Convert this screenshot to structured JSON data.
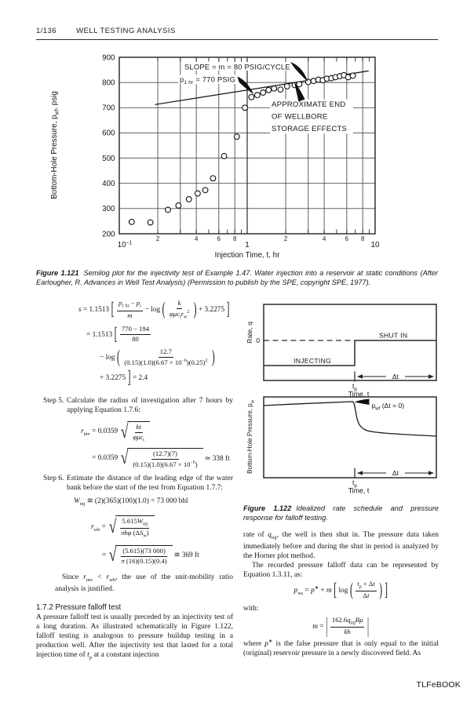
{
  "header": {
    "page": "1/136",
    "title": "WELL TESTING ANALYSIS"
  },
  "figure121": {
    "label": "Figure 1.121",
    "text": "Semilog plot for the injectivity test of Example 1.47. Water injection into a reservoir at static conditions (After Earlougher, R. Advances in Well Test Analysis) (Permission to publish by the SPE, copyright SPE, 1977)."
  },
  "chart_data": {
    "type": "scatter",
    "x_scale": "log",
    "xlim": [
      0.1,
      10
    ],
    "ylim": [
      200,
      900
    ],
    "xlabel": "Injection Time, t, hr",
    "ylabel": "Bottom-Hole Pressure, p_{wf}, psig",
    "y_ticks": [
      200,
      300,
      400,
      500,
      600,
      700,
      800,
      900
    ],
    "x_gridlines": [
      0.2,
      0.3,
      0.4,
      0.6,
      0.8,
      1,
      2,
      3,
      4,
      6,
      8
    ],
    "x_minor_ticks": [
      0.2,
      0.3,
      0.4,
      0.5,
      0.6,
      0.7,
      0.8,
      0.9,
      2,
      3,
      4,
      5,
      6,
      7,
      8,
      9
    ],
    "x_tick_labels": [
      {
        "t": 0.1,
        "label": "10^{−1}",
        "size": "major"
      },
      {
        "t": 0.2,
        "label": "2",
        "size": "minor"
      },
      {
        "t": 0.4,
        "label": "4",
        "size": "minor"
      },
      {
        "t": 0.6,
        "label": "6",
        "size": "minor"
      },
      {
        "t": 0.8,
        "label": "8",
        "size": "minor"
      },
      {
        "t": 1,
        "label": "1",
        "size": "major"
      },
      {
        "t": 2,
        "label": "2",
        "size": "minor"
      },
      {
        "t": 4,
        "label": "4",
        "size": "minor"
      },
      {
        "t": 6,
        "label": "6",
        "size": "minor"
      },
      {
        "t": 8,
        "label": "8",
        "size": "minor"
      },
      {
        "t": 10,
        "label": "10",
        "size": "major"
      }
    ],
    "points": [
      [
        0.125,
        247
      ],
      [
        0.175,
        245
      ],
      [
        0.24,
        295
      ],
      [
        0.29,
        312
      ],
      [
        0.35,
        337
      ],
      [
        0.41,
        360
      ],
      [
        0.47,
        373
      ],
      [
        0.54,
        420
      ],
      [
        0.66,
        508
      ],
      [
        0.83,
        585
      ],
      [
        0.96,
        700
      ],
      [
        1.08,
        742
      ],
      [
        1.2,
        750
      ],
      [
        1.33,
        760
      ],
      [
        1.47,
        770
      ],
      [
        1.62,
        776
      ],
      [
        1.82,
        772
      ],
      [
        2.05,
        785
      ],
      [
        2.35,
        790
      ],
      [
        2.55,
        793
      ],
      [
        3.0,
        802
      ],
      [
        3.3,
        806
      ],
      [
        3.6,
        811
      ],
      [
        3.9,
        809
      ],
      [
        4.2,
        815
      ],
      [
        4.55,
        817
      ],
      [
        4.9,
        821
      ],
      [
        5.3,
        825
      ],
      [
        5.7,
        829
      ],
      [
        6.15,
        821
      ],
      [
        6.7,
        827
      ]
    ],
    "trend_line": {
      "p_1hr_psig": 770,
      "slope_psig_per_cycle": 80,
      "t_start": 0.19,
      "t_end": 8.9
    },
    "annotations": {
      "slope": "SLOPE = m = 80 PSIG/CYCLE",
      "p1hr": "p_{1 hr} = 770 PSIG",
      "storage_lines": [
        "APPROXIMATE END",
        "OF WELLBORE",
        "STORAGE EFFECTS"
      ]
    }
  },
  "equations": {
    "s1": [
      "«s» = 1.1513",
      {
        "b": "["
      },
      {
        "frac": [
          "«p»_{1 hr} − «p»_{i}",
          "«m»"
        ]
      },
      "− log",
      {
        "b": "("
      },
      {
        "frac": [
          "«k»",
          "«φμc»_{t}«r»_{w}^{2}"
        ]
      },
      {
        "b": ")"
      },
      "+ 3.2275",
      {
        "b": "]"
      }
    ],
    "s2": [
      "= 1.1513",
      {
        "b": "["
      },
      {
        "frac": [
          "770 − 194",
          "80"
        ]
      }
    ],
    "s3": [
      "− log",
      {
        "b": "("
      },
      {
        "frac": [
          "12.7",
          "(0.15)(1.0)(6.67 × 10^{−6})(0.25)^{2}"
        ]
      },
      {
        "b": ")"
      }
    ],
    "s4": [
      "+ 3.2275",
      {
        "b": "]"
      },
      "= 2.4"
    ],
    "rinv1": [
      "«r»_{inv} = 0.0359",
      {
        "sqrt": [
          {
            "frac": [
              "«kt»",
              "«φμc»_{t}"
            ]
          }
        ]
      }
    ],
    "rinv2": [
      "= 0.0359",
      {
        "sqrt": [
          {
            "frac": [
              "(12.7)(7)",
              "(0.15)(1.0)(6.67 × 10^{−6})"
            ]
          }
        ]
      },
      "≃ 338 ft"
    ],
    "winj": [
      "«W»_{inj} ≅ (2)(365)(100)(1.0) = 73 000 bbl"
    ],
    "rwb1": [
      "«r»_{wb} =",
      {
        "sqrt": [
          {
            "frac": [
              "5.615«W»_{inj}",
              "«πhφ» (Δ«S»_{w})"
            ]
          }
        ]
      }
    ],
    "rwb2": [
      "=",
      {
        "sqrt": [
          {
            "frac": [
              "(5.615)(73 000)",
              "«π» (16)(0.15)(0.4)"
            ]
          }
        ]
      },
      "≅ 369 ft"
    ],
    "pws": [
      "«p»_{ws} = «p»^{∗} + «m»",
      {
        "b": "["
      },
      "log",
      {
        "b": "("
      },
      {
        "frac": [
          "«t»_{p} + Δ«t»",
          "Δ«t»"
        ]
      },
      {
        "b": ")"
      },
      {
        "b": "]"
      }
    ],
    "m": [
      "«m» =",
      {
        "b": "|",
        "bar": true
      },
      {
        "frac": [
          "162.6«q»_{inj}«Bμ»",
          "«kh»"
        ]
      },
      {
        "b": "|",
        "bar": true
      }
    ]
  },
  "left_col": {
    "step5_label": "Step 5.",
    "step5_text": "Calculate the radius of investigation after 7 hours by applying Equation 1.7.6:",
    "step6_label": "Step 6.",
    "step6_text": "Estimate the distance of the leading edge of the water bank before the start of the test from Equation 1.7.7:",
    "since_text": "Since «r»_{inv} < «r»_{wb}, the use of the unit-mobility ratio analysis is justified.",
    "section_heading": "1.7.2  Pressure falloff test",
    "section_para": "A pressure falloff test is usually preceded by an injectivity test of a long duration. As illustrated schematically in Figure 1.122, falloff testing is analogous to pressure buildup testing in a production well. After the injectivity test that lasted for a total injection time of «t»_{p} at a constant injection"
  },
  "figure122": {
    "caption_label": "Figure 1.122",
    "caption_text": "Idealized rate schedule and pressure response for falloff testing.",
    "rate_plot": {
      "ylabel": "Rate, q",
      "zero": "0",
      "shut_in": "SHUT IN",
      "injecting": "INJECTING",
      "dt": "Δt",
      "tp": "t_{p}",
      "xlabel": "Time, t"
    },
    "pressure_plot": {
      "ylabel": "Bottom-Hole Pressure, p_{w}",
      "pwf": "p_{wf} (Δt = 0)",
      "dt": "Δt",
      "tp": "t_{p}",
      "xlabel": "Time, t"
    }
  },
  "right_col": {
    "para1": "rate of «q»_{inj}, the well is then shut in. The pressure data taken immediately before and during the shut in period is analyzed by the Horner plot method.",
    "para2": "The recorded pressure falloff data can be represented by Equation 1.3.11, as:",
    "with_label": "with:",
    "where_para": "where «p»^{∗} is the false pressure that is only equal to the initial (original) reservoir pressure in a newly discovered field. As"
  },
  "footer": "TLFeBOOK"
}
